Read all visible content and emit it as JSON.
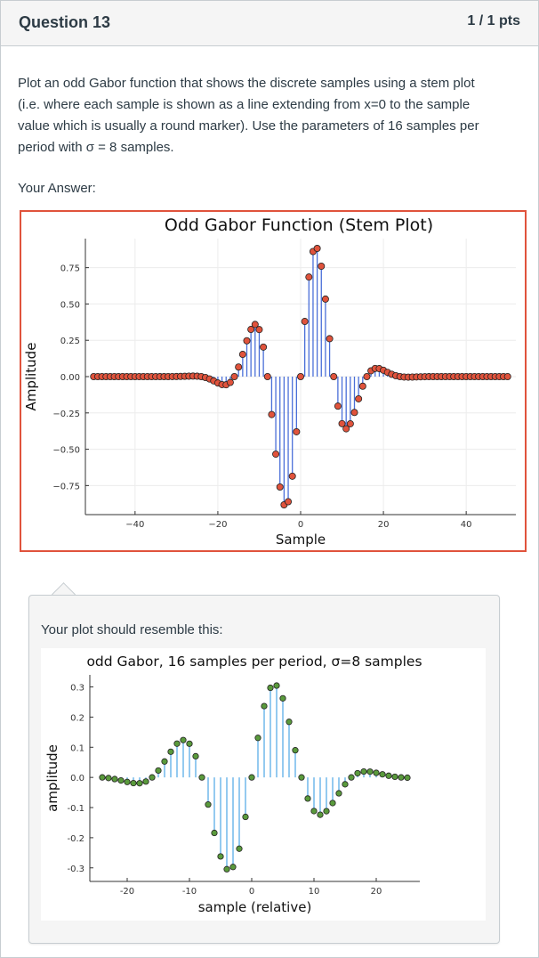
{
  "question": {
    "title": "Question 13",
    "points": "1 / 1 pts",
    "prompt_lines": [
      "Plot an odd Gabor function that shows the discrete samples using a stem plot",
      "(i.e. where each sample is shown as a line extending from x=0 to the sample",
      "value which is usually a round marker).  Use the parameters of 16 samples per",
      "period with σ = 8 samples."
    ],
    "your_answer_label": "Your Answer:"
  },
  "feedback": {
    "text": "Your plot should resemble this:"
  },
  "colors": {
    "answer_border": "#e0533c",
    "answer_stem": "#4a6fd8",
    "answer_marker": "#e0533c",
    "ref_stem": "#5aaee8",
    "ref_marker": "#5a9a3c"
  },
  "chart_data": [
    {
      "type": "stem",
      "title": "Odd Gabor Function (Stem Plot)",
      "xlabel": "Sample",
      "ylabel": "Amplitude",
      "xlim": [
        -52,
        52
      ],
      "ylim": [
        -0.95,
        0.95
      ],
      "xticks": [
        -40,
        -20,
        0,
        20,
        40
      ],
      "xtick_labels": [
        "−40",
        "−20",
        "0",
        "20",
        "40"
      ],
      "yticks": [
        0.75,
        0.5,
        0.25,
        0.0,
        -0.25,
        -0.5,
        -0.75
      ],
      "ytick_labels": [
        "0.75",
        "0.50",
        "0.25",
        "0.00",
        "−0.25",
        "−0.50",
        "−0.75"
      ],
      "grid": true,
      "series": [
        {
          "x_range": [
            -50,
            50
          ],
          "function": "odd_gabor",
          "amplitude": 1.0,
          "period": 16,
          "sigma": 8
        }
      ]
    },
    {
      "type": "stem",
      "title": "odd Gabor, 16 samples per period, σ=8 samples",
      "xlabel": "sample (relative)",
      "ylabel": "amplitude",
      "xlim": [
        -26,
        27
      ],
      "ylim": [
        -0.345,
        0.34
      ],
      "xticks": [
        -20,
        -10,
        0,
        10,
        20
      ],
      "xtick_labels": [
        "-20",
        "-10",
        "0",
        "10",
        "20"
      ],
      "yticks": [
        0.3,
        0.2,
        0.1,
        0.0,
        -0.1,
        -0.2,
        -0.3
      ],
      "ytick_labels": [
        "0.3",
        "0.2",
        "0.1",
        "0.0",
        "-0.1",
        "-0.2",
        "-0.3"
      ],
      "grid": false,
      "series": [
        {
          "x_range": [
            -24,
            25
          ],
          "function": "odd_gabor",
          "amplitude": 0.345,
          "period": 16,
          "sigma": 8
        }
      ]
    }
  ]
}
